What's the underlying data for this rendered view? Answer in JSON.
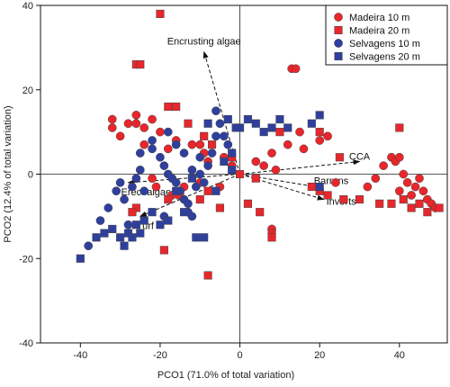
{
  "chart_data": {
    "type": "scatter",
    "title": "",
    "xlabel": "PCO1 (71.0% of total variation)",
    "ylabel": "PCO2 (12.4% of total variation)",
    "xlim": [
      -50,
      52
    ],
    "ylim": [
      -40,
      40
    ],
    "xticks": [
      -40,
      -20,
      0,
      20,
      40
    ],
    "yticks": [
      -40,
      -20,
      0,
      20,
      40
    ],
    "grid": false,
    "legend_position": "top-right",
    "series": [
      {
        "name": "Madeira 10 m",
        "marker": "circle",
        "color": "#e8262b",
        "points": [
          [
            -32,
            13
          ],
          [
            -32,
            11
          ],
          [
            -30,
            9
          ],
          [
            -28,
            12
          ],
          [
            -26,
            14
          ],
          [
            -26,
            12
          ],
          [
            -24,
            11
          ],
          [
            -22,
            13
          ],
          [
            -20,
            10
          ],
          [
            -24,
            7
          ],
          [
            -18,
            6
          ],
          [
            -16,
            8
          ],
          [
            -12,
            7
          ],
          [
            -10,
            7
          ],
          [
            -9,
            5
          ],
          [
            -22,
            -1
          ],
          [
            -21,
            -3
          ],
          [
            -17,
            -5
          ],
          [
            -14,
            -3
          ],
          [
            -10,
            -2
          ],
          [
            -5,
            -3
          ],
          [
            -8,
            3
          ],
          [
            -4,
            4
          ],
          [
            -2,
            2
          ],
          [
            4,
            3
          ],
          [
            6,
            2
          ],
          [
            9,
            1
          ],
          [
            8,
            5
          ],
          [
            12,
            7
          ],
          [
            13,
            25
          ],
          [
            14,
            25
          ],
          [
            15,
            10
          ],
          [
            16,
            6
          ],
          [
            20,
            8
          ],
          [
            22,
            9
          ],
          [
            24,
            -2
          ],
          [
            32,
            -3
          ],
          [
            34,
            -1
          ],
          [
            36,
            2
          ],
          [
            38,
            4
          ],
          [
            39,
            3
          ],
          [
            40,
            4
          ],
          [
            41,
            0
          ],
          [
            42,
            -2
          ],
          [
            40,
            -4
          ],
          [
            43,
            -5
          ],
          [
            44,
            -3
          ],
          [
            45,
            -1
          ],
          [
            46,
            -4
          ],
          [
            47,
            -6
          ],
          [
            48,
            -7
          ],
          [
            49,
            -8
          ],
          [
            8,
            -13
          ]
        ]
      },
      {
        "name": "Madeira 20 m",
        "marker": "square",
        "color": "#e8262b",
        "points": [
          [
            -20,
            38
          ],
          [
            -26,
            26
          ],
          [
            -25,
            26
          ],
          [
            -18,
            16
          ],
          [
            -16,
            16
          ],
          [
            -13,
            12
          ],
          [
            -9,
            9
          ],
          [
            -7,
            7
          ],
          [
            -2,
            4
          ],
          [
            0,
            0
          ],
          [
            4,
            -1
          ],
          [
            2,
            -7
          ],
          [
            5,
            -9
          ],
          [
            -5,
            -8
          ],
          [
            -10,
            -6
          ],
          [
            -8,
            -4
          ],
          [
            -15,
            -5
          ],
          [
            -18,
            -6
          ],
          [
            -26,
            -8
          ],
          [
            -27,
            -9
          ],
          [
            -19,
            -18
          ],
          [
            -8,
            -24
          ],
          [
            8,
            -14
          ],
          [
            8,
            -15
          ],
          [
            18,
            -3
          ],
          [
            20,
            -4
          ],
          [
            22,
            -5
          ],
          [
            26,
            -6
          ],
          [
            30,
            -6
          ],
          [
            35,
            -7
          ],
          [
            38,
            -7
          ],
          [
            41,
            -6
          ],
          [
            43,
            -8
          ],
          [
            45,
            -7
          ],
          [
            47,
            -9
          ],
          [
            50,
            -8
          ],
          [
            10,
            10
          ],
          [
            20,
            10
          ],
          [
            40,
            11
          ],
          [
            25,
            4
          ]
        ]
      },
      {
        "name": "Selvagens 10 m",
        "marker": "circle",
        "color": "#2f3f9e",
        "points": [
          [
            -38,
            -17
          ],
          [
            -35,
            -11
          ],
          [
            -33,
            -8
          ],
          [
            -31,
            -4
          ],
          [
            -29,
            -6
          ],
          [
            -27,
            -3
          ],
          [
            -30,
            -2
          ],
          [
            -26,
            -1
          ],
          [
            -25,
            1
          ],
          [
            -25,
            5
          ],
          [
            -22,
            8
          ],
          [
            -22,
            6
          ],
          [
            -20,
            4
          ],
          [
            -19,
            2
          ],
          [
            -18,
            0
          ],
          [
            -17,
            -1
          ],
          [
            -16,
            -2
          ],
          [
            -15,
            -4
          ],
          [
            -14,
            -6
          ],
          [
            -13,
            -7
          ],
          [
            -13,
            -9
          ],
          [
            -12,
            -10
          ],
          [
            -12,
            1
          ],
          [
            -11,
            -3
          ],
          [
            -10,
            0
          ],
          [
            -8,
            2
          ],
          [
            -7,
            5
          ],
          [
            -6,
            9
          ],
          [
            -6,
            15
          ],
          [
            -5,
            12
          ],
          [
            -4,
            9
          ],
          [
            -3,
            7
          ],
          [
            -18,
            10
          ],
          [
            -16,
            7
          ],
          [
            -14,
            5
          ],
          [
            -10,
            4
          ],
          [
            -9,
            -2
          ],
          [
            -19,
            -10
          ],
          [
            -24,
            -4
          ],
          [
            -28,
            -12
          ]
        ]
      },
      {
        "name": "Selvagens 20 m",
        "marker": "square",
        "color": "#2f3f9e",
        "points": [
          [
            -40,
            -20
          ],
          [
            -36,
            -15
          ],
          [
            -34,
            -14
          ],
          [
            -32,
            -13
          ],
          [
            -30,
            -15
          ],
          [
            -29,
            -17
          ],
          [
            -28,
            -14
          ],
          [
            -27,
            -15
          ],
          [
            -25,
            -14
          ],
          [
            -24,
            -11
          ],
          [
            -22,
            -9
          ],
          [
            -20,
            -12
          ],
          [
            -18,
            -11
          ],
          [
            -14,
            -9
          ],
          [
            -11,
            -15
          ],
          [
            -9,
            -15
          ],
          [
            -26,
            -12
          ],
          [
            -16,
            -4
          ],
          [
            -12,
            -1
          ],
          [
            -6,
            -4
          ],
          [
            -4,
            3
          ],
          [
            -2,
            5
          ],
          [
            -1,
            11
          ],
          [
            -3,
            13
          ],
          [
            0,
            11
          ],
          [
            2,
            13
          ],
          [
            4,
            12
          ],
          [
            6,
            10
          ],
          [
            8,
            11
          ],
          [
            10,
            13
          ],
          [
            12,
            11
          ],
          [
            18,
            12
          ],
          [
            20,
            14
          ],
          [
            20,
            -3
          ],
          [
            -2,
            1
          ],
          [
            -8,
            12
          ]
        ]
      }
    ],
    "vectors": [
      {
        "label": "Encrusting algae",
        "x": -9,
        "y": 29
      },
      {
        "label": "CCA",
        "x": 30,
        "y": 3
      },
      {
        "label": "Barrens",
        "x": 19,
        "y": -3
      },
      {
        "label": "Inverts",
        "x": 21,
        "y": -6
      },
      {
        "label": "Erect algae",
        "x": -28,
        "y": -2
      },
      {
        "label": "Turf",
        "x": -25,
        "y": -10
      }
    ]
  }
}
